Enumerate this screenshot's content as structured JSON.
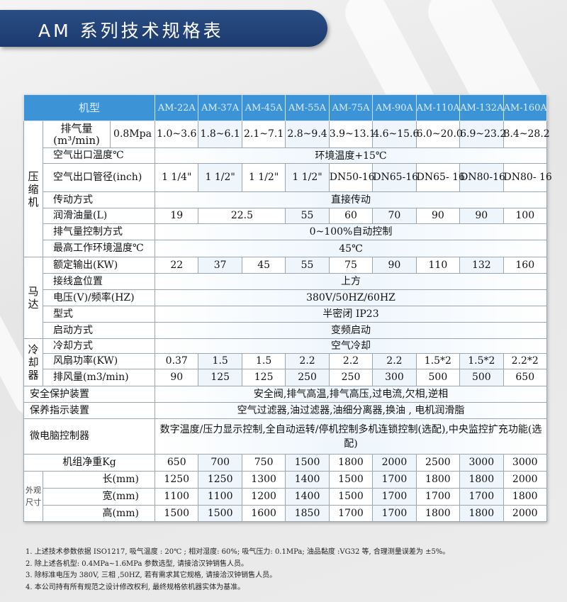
{
  "title": "AM 系列技术规格表",
  "colors": {
    "banner": "#1c3a6e",
    "header": "#3c93d6",
    "alt_row": "#eef6fc"
  },
  "table": {
    "model_header": "机型",
    "models": [
      "AM-22A",
      "AM-37A",
      "AM-45A",
      "AM-55A",
      "AM-75A",
      "AM-90A",
      "AM-110A",
      "AM-132A",
      "AM-160A"
    ],
    "groups": {
      "compressor": "压缩机",
      "motor": "马达",
      "cooler": "冷却器",
      "dimensions": "外观尺寸"
    },
    "rows": [
      {
        "group": "compressor",
        "label": "排气量\n(m³/min)",
        "sub": "0.8Mpa",
        "cells": [
          [
            "1.0~3.6",
            1
          ],
          [
            "1.8~6.1",
            1
          ],
          [
            "2.1~7.1",
            1
          ],
          [
            "2.8~9.4",
            1
          ],
          [
            "3.9~13.1",
            1
          ],
          [
            "4.6~15.6",
            1
          ],
          [
            "6.0~20.0",
            1
          ],
          [
            "6.9~23.2",
            1
          ],
          [
            "8.4~28.2",
            1
          ]
        ]
      },
      {
        "group": "compressor",
        "label": "空气出口温度℃",
        "cells": [
          [
            "环境温度+15℃",
            9
          ]
        ]
      },
      {
        "group": "compressor",
        "label": "空气出口管径(inch)",
        "cells": [
          [
            "1 1/4\"",
            1
          ],
          [
            "1 1/2\"",
            1
          ],
          [
            "1 1/2\"",
            1
          ],
          [
            "1 1/2\"",
            1
          ],
          [
            "DN50-16",
            1
          ],
          [
            "DN65-16",
            1
          ],
          [
            "DN65- 16",
            1
          ],
          [
            "DN80-16",
            1
          ],
          [
            "DN80- 16",
            1
          ]
        ]
      },
      {
        "group": "compressor",
        "label": "传动方式",
        "cells": [
          [
            "直接传动",
            9
          ]
        ]
      },
      {
        "group": "compressor",
        "label": "润滑油量(L)",
        "cells": [
          [
            "19",
            1
          ],
          [
            "22.5",
            2
          ],
          [
            "55",
            1
          ],
          [
            "60",
            1
          ],
          [
            "70",
            1
          ],
          [
            "90",
            1
          ],
          [
            "90",
            1
          ],
          [
            "100",
            1
          ]
        ]
      },
      {
        "group": "compressor",
        "label": "排气量控制方式",
        "cells": [
          [
            "0~100%自动控制",
            9
          ]
        ]
      },
      {
        "group": "compressor",
        "label": "最高工作环境温度℃",
        "cells": [
          [
            "45℃",
            9
          ]
        ]
      },
      {
        "group": "motor",
        "label": "额定输出(KW)",
        "cells": [
          [
            "22",
            1
          ],
          [
            "37",
            1
          ],
          [
            "45",
            1
          ],
          [
            "55",
            1
          ],
          [
            "75",
            1
          ],
          [
            "90",
            1
          ],
          [
            "110",
            1
          ],
          [
            "132",
            1
          ],
          [
            "160",
            1
          ]
        ]
      },
      {
        "group": "motor",
        "label": "接线盒位置",
        "cells": [
          [
            "上方",
            9
          ]
        ]
      },
      {
        "group": "motor",
        "label": "电压(V)/频率(HZ)",
        "cells": [
          [
            "380V/50HZ/60HZ",
            9
          ]
        ]
      },
      {
        "group": "motor",
        "label": "型式",
        "cells": [
          [
            "半密闭 IP23",
            9
          ]
        ]
      },
      {
        "group": "motor",
        "label": "启动方式",
        "cells": [
          [
            "变频启动",
            9
          ]
        ]
      },
      {
        "group": "cooler",
        "label": "冷却方式",
        "cells": [
          [
            "空气冷却",
            9
          ]
        ]
      },
      {
        "group": "cooler",
        "label": "风扇功率(KW)",
        "cells": [
          [
            "0.37",
            1
          ],
          [
            "1.5",
            1
          ],
          [
            "1.5",
            1
          ],
          [
            "2.2",
            1
          ],
          [
            "2.2",
            1
          ],
          [
            "2.2",
            1
          ],
          [
            "1.5*2",
            1
          ],
          [
            "1.5*2",
            1
          ],
          [
            "2.2*2",
            1
          ]
        ]
      },
      {
        "group": "cooler",
        "label": "排风量(m3/min)",
        "cells": [
          [
            "90",
            1
          ],
          [
            "125",
            1
          ],
          [
            "125",
            1
          ],
          [
            "250",
            1
          ],
          [
            "250",
            1
          ],
          [
            "300",
            1
          ],
          [
            "500",
            1
          ],
          [
            "500",
            1
          ],
          [
            "650",
            1
          ]
        ]
      },
      {
        "group": null,
        "label": "安全保护装置",
        "cells": [
          [
            "安全阀,排气高温,排气高压,过电流,欠相,逆相",
            9
          ]
        ]
      },
      {
        "group": null,
        "label": "保养指示装置",
        "cells": [
          [
            "空气过滤器,油过滤器,油细分离器,换油 , 电机润滑脂",
            9
          ]
        ]
      },
      {
        "group": null,
        "label": "微电脑控制器",
        "cells": [
          [
            "数字温度/压力显示控制,全自动运转/停机控制多机连锁控制(选配),中央监控扩充功能(选配)",
            9
          ]
        ]
      },
      {
        "group": null,
        "label": "机组净重Kg",
        "center": true,
        "cells": [
          [
            "650",
            1
          ],
          [
            "700",
            1
          ],
          [
            "750",
            1
          ],
          [
            "1500",
            1
          ],
          [
            "1800",
            1
          ],
          [
            "2000",
            1
          ],
          [
            "2500",
            1
          ],
          [
            "3000",
            1
          ],
          [
            "3000",
            1
          ]
        ]
      },
      {
        "group": "dimensions",
        "label": "长(mm)",
        "cells": [
          [
            "1250",
            1
          ],
          [
            "1250",
            1
          ],
          [
            "1300",
            1
          ],
          [
            "1400",
            1
          ],
          [
            "1500",
            1
          ],
          [
            "1700",
            1
          ],
          [
            "1800",
            1
          ],
          [
            "1800",
            1
          ],
          [
            "2000",
            1
          ]
        ]
      },
      {
        "group": "dimensions",
        "label": "宽(mm)",
        "cells": [
          [
            "1100",
            1
          ],
          [
            "1100",
            1
          ],
          [
            "1200",
            1
          ],
          [
            "1400",
            1
          ],
          [
            "1500",
            1
          ],
          [
            "1700",
            1
          ],
          [
            "1700",
            1
          ],
          [
            "1700",
            1
          ],
          [
            "1800",
            1
          ]
        ]
      },
      {
        "group": "dimensions",
        "label": "高(mm)",
        "cells": [
          [
            "1500",
            1
          ],
          [
            "1500",
            1
          ],
          [
            "1600",
            1
          ],
          [
            "1850",
            1
          ],
          [
            "1700",
            1
          ],
          [
            "1700",
            1
          ],
          [
            "1800",
            1
          ],
          [
            "1800",
            1
          ],
          [
            "2000",
            1
          ]
        ]
      }
    ]
  },
  "notes": [
    "1. 上述技术参数依据 ISO1217, 吸气温度 : 20℃ ; 相对湿度: 60%; 吸气压力: 0.1MPa; 油品黏度 :VG32 等, 合理测量误差为 ±5%。",
    "2. 除上述各机型: 0.4MPa~1.6MPa 参数选型, 请接洽汉钟销售人员。",
    "3. 除标准电压为 380V, 三相 ,50HZ, 若有需求其它规格, 请接洽汉钟销售人员。",
    "4. 本公司持有所有规范之设计修改权利, 最终规格依机器实体为基准。"
  ]
}
